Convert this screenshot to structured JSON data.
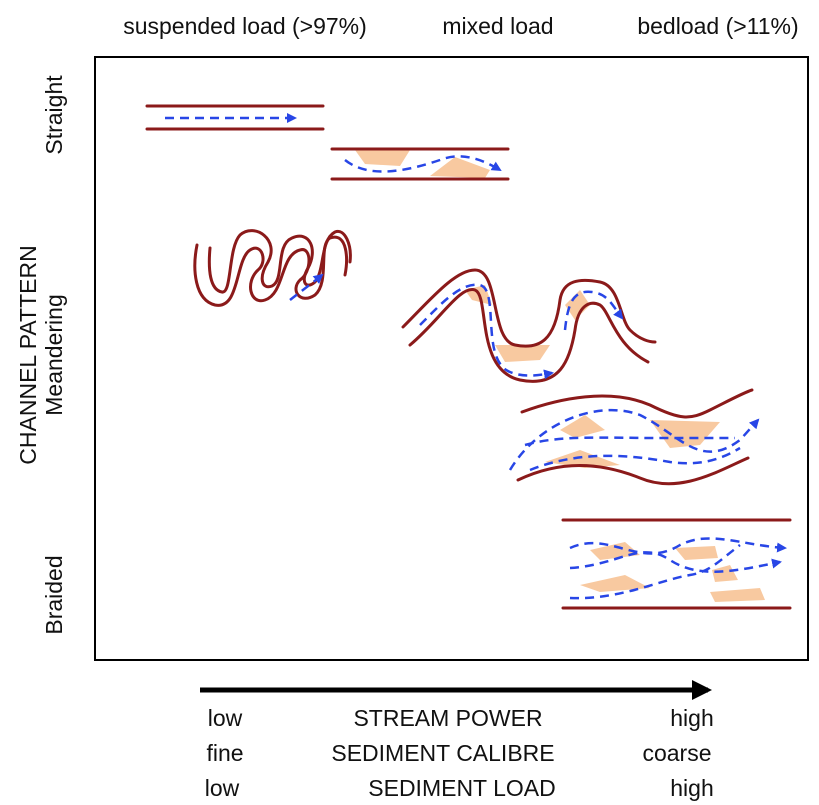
{
  "header": {
    "columns": [
      "suspended load (>97%)",
      "mixed load",
      "bedload (>11%)"
    ]
  },
  "axis": {
    "title": "CHANNEL PATTERN",
    "patterns": [
      "Straight",
      "Meandering",
      "Braided"
    ]
  },
  "footer": {
    "rows": [
      [
        "low",
        "STREAM POWER",
        "high"
      ],
      [
        "fine",
        "SEDIMENT CALIBRE",
        "coarse"
      ],
      [
        "low",
        "SEDIMENT LOAD",
        "high"
      ]
    ]
  }
}
